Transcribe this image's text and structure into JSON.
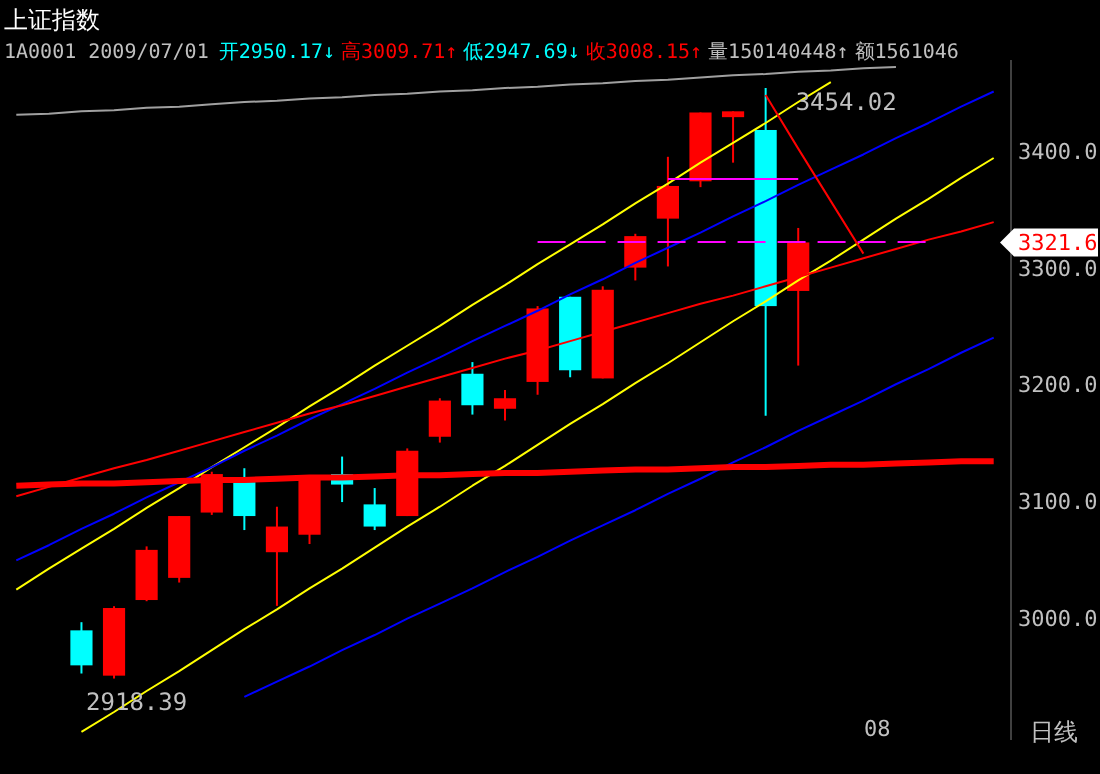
{
  "chart_data": {
    "type": "candlestick",
    "title": "上证指数",
    "subtitle": "1A0001 2009/07/01",
    "categories": [
      null,
      null,
      null,
      null,
      null,
      null,
      null,
      null,
      null,
      null,
      null,
      null,
      null,
      null,
      null,
      null,
      null,
      null,
      null,
      null,
      null,
      null,
      null,
      null,
      null,
      null,
      null,
      null,
      null,
      null,
      null
    ],
    "ohlc": [
      null,
      null,
      [
        2989,
        2996,
        2952,
        2959
      ],
      [
        2950.17,
        3009.71,
        2947.69,
        3008.15
      ],
      [
        3015,
        3061,
        3014,
        3058
      ],
      [
        3034,
        3087,
        3030,
        3087
      ],
      [
        3090,
        3125,
        3088,
        3123
      ],
      [
        3116,
        3128,
        3075,
        3087
      ],
      [
        3056,
        3095,
        3010,
        3078
      ],
      [
        3071,
        3121,
        3063,
        3121
      ],
      [
        3123,
        3138,
        3099,
        3114
      ],
      [
        3097,
        3111,
        3075,
        3078
      ],
      [
        3087,
        3145,
        3087,
        3143
      ],
      [
        3155,
        3188,
        3150,
        3186
      ],
      [
        3209,
        3219,
        3174,
        3182
      ],
      [
        3179,
        3195,
        3169,
        3188
      ],
      [
        3202,
        3267,
        3191,
        3265
      ],
      [
        3275,
        3275,
        3206,
        3212
      ],
      [
        3205,
        3284,
        3205,
        3281
      ],
      [
        3300,
        3329,
        3289,
        3327
      ],
      [
        3342,
        3395,
        3301,
        3370
      ],
      [
        3374,
        3433,
        3369,
        3433
      ],
      [
        3429,
        3434,
        3390,
        3434
      ],
      [
        3418,
        3454.02,
        3173,
        3267
      ],
      [
        3280,
        3334,
        3216,
        3321.6
      ],
      null,
      null,
      null,
      null,
      null,
      null
    ],
    "colors": [
      null,
      null,
      "#00ffff",
      "#ff0000",
      "#ff0000",
      "#ff0000",
      "#ff0000",
      "#00ffff",
      "#ff0000",
      "#ff0000",
      "#00ffff",
      "#00ffff",
      "#ff0000",
      "#ff0000",
      "#00ffff",
      "#ff0000",
      "#ff0000",
      "#00ffff",
      "#ff0000",
      "#ff0000",
      "#ff0000",
      "#ff0000",
      "#ff0000",
      "#00ffff",
      "#ff0000",
      null,
      null,
      null,
      null,
      null,
      null
    ],
    "series": [
      {
        "type": "line",
        "color": "#a0a0a0",
        "values": [
          3431,
          3432,
          3434,
          3435,
          3437,
          3438,
          3440,
          3442,
          3443,
          3445,
          3446,
          3448,
          3449,
          3451,
          3452,
          3454,
          3455,
          3457,
          3458,
          3460,
          3461,
          3463,
          3465,
          3466,
          3468,
          3469,
          3471,
          3472,
          null,
          null,
          null
        ]
      },
      {
        "type": "line",
        "color": "#ffff00",
        "values": [
          3024,
          3042,
          3059,
          3076,
          3094,
          3111,
          3129,
          3146,
          3163,
          3181,
          3198,
          3216,
          3233,
          3250,
          3268,
          3285,
          3303,
          3320,
          3337,
          3355,
          3372,
          3390,
          3407,
          3424,
          3442,
          3459,
          null,
          null,
          null,
          null,
          null
        ]
      },
      {
        "type": "line",
        "color": "#ffff00",
        "values": [
          null,
          null,
          2902,
          2919,
          2937,
          2954,
          2972,
          2990,
          3007,
          3025,
          3042,
          3060,
          3078,
          3095,
          3113,
          3130,
          3148,
          3166,
          3183,
          3201,
          3218,
          3236,
          3254,
          3271,
          3289,
          3306,
          3324,
          3342,
          3359,
          3377,
          3394
        ]
      },
      {
        "type": "line",
        "color": "#0000ff",
        "values": [
          3049,
          3062,
          3076,
          3089,
          3103,
          3116,
          3129,
          3143,
          3156,
          3170,
          3183,
          3196,
          3210,
          3223,
          3237,
          3250,
          3263,
          3277,
          3290,
          3304,
          3317,
          3330,
          3344,
          3357,
          3371,
          3384,
          3397,
          3411,
          3424,
          3438,
          3451
        ]
      },
      {
        "type": "line",
        "color": "#0000ff",
        "values": [
          null,
          null,
          null,
          null,
          null,
          null,
          null,
          2932,
          2945,
          2958,
          2972,
          2985,
          2999,
          3012,
          3025,
          3039,
          3052,
          3066,
          3079,
          3092,
          3106,
          3119,
          3133,
          3146,
          3160,
          3173,
          3186,
          3200,
          3213,
          3227,
          3240
        ]
      },
      {
        "type": "line",
        "color": "#ff0000",
        "values": [
          3104,
          3112,
          3120,
          3128,
          3135,
          3143,
          3151,
          3159,
          3167,
          3175,
          3182,
          3190,
          3198,
          3206,
          3214,
          3222,
          3229,
          3237,
          3245,
          3253,
          3261,
          3269,
          3276,
          3284,
          3292,
          3300,
          3308,
          3316,
          3324,
          3331,
          3339
        ]
      },
      {
        "type": "line",
        "color": "#ff0000",
        "values": [
          3113,
          3114,
          3115,
          3115,
          3116,
          3117,
          3118,
          3118,
          3119,
          3120,
          3120,
          3121,
          3122,
          3122,
          3123,
          3124,
          3124,
          3125,
          3126,
          3127,
          3127,
          3128,
          3129,
          3129,
          3130,
          3131,
          3131,
          3132,
          3133,
          3134,
          3134
        ]
      },
      {
        "type": "line",
        "color": "#ff00ff",
        "line_style": "dashed",
        "values": [
          null,
          null,
          null,
          null,
          null,
          null,
          null,
          null,
          null,
          null,
          null,
          null,
          null,
          null,
          null,
          null,
          3322,
          3322,
          3322,
          3322,
          3322,
          3322,
          3322,
          3322,
          3322,
          3322,
          3322,
          3322,
          3322,
          null,
          null
        ]
      },
      {
        "type": "line",
        "color": "#ff00ff",
        "values": [
          null,
          null,
          null,
          null,
          null,
          null,
          null,
          null,
          null,
          null,
          null,
          null,
          null,
          null,
          null,
          null,
          null,
          null,
          null,
          null,
          3376,
          3376,
          3376,
          3376,
          3376,
          null,
          null,
          null,
          null,
          null,
          null
        ]
      },
      {
        "type": "line",
        "color": "#ff0000",
        "values": [
          null,
          null,
          null,
          null,
          null,
          null,
          null,
          null,
          null,
          null,
          null,
          null,
          null,
          null,
          null,
          null,
          null,
          null,
          null,
          null,
          null,
          null,
          null,
          3448,
          3402,
          3357,
          3312,
          null,
          null,
          null,
          null
        ]
      }
    ],
    "ylim": [
      2895,
      3478
    ],
    "yticks": [
      {
        "value": 3000,
        "label": "3000.0"
      },
      {
        "value": 3100,
        "label": "3100.0"
      },
      {
        "value": 3200,
        "label": "3200.0"
      },
      {
        "value": 3300,
        "label": "3300.0"
      },
      {
        "value": 3400,
        "label": "3400.0"
      }
    ],
    "grid": false,
    "annotations": [
      "3454.02",
      "2918.39",
      "3321.6",
      "08",
      "日线",
      "开2950.17↓",
      "高3009.71↑",
      "低2947.69↓",
      "收3008.15↑",
      "量150140448↑",
      "额1561046"
    ]
  }
}
